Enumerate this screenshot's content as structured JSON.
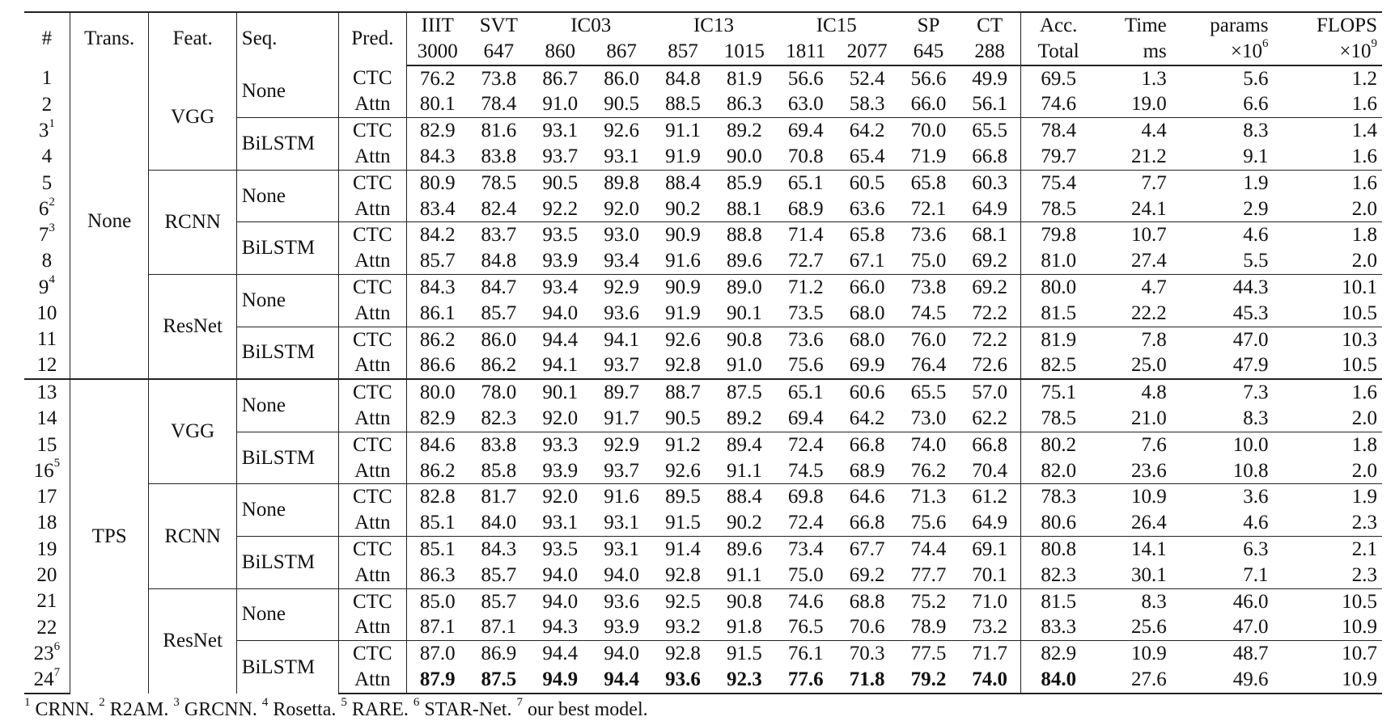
{
  "header": {
    "idx": "#",
    "trans": "Trans.",
    "feat": "Feat.",
    "seq": "Seq.",
    "pred": "Pred.",
    "datasets": [
      {
        "name": "IIIT",
        "subs": [
          "3000"
        ]
      },
      {
        "name": "SVT",
        "subs": [
          "647"
        ]
      },
      {
        "name": "IC03",
        "subs": [
          "860",
          "867"
        ]
      },
      {
        "name": "IC13",
        "subs": [
          "857",
          "1015"
        ]
      },
      {
        "name": "IC15",
        "subs": [
          "1811",
          "2077"
        ]
      },
      {
        "name": "SP",
        "subs": [
          "645"
        ]
      },
      {
        "name": "CT",
        "subs": [
          "288"
        ]
      }
    ],
    "acc": "Acc.",
    "acc_sub": "Total",
    "time": "Time",
    "time_sub": "ms",
    "params": "params",
    "params_sub": "×10",
    "params_exp": "6",
    "flops": "FLOPS",
    "flops_sub": "×10",
    "flops_exp": "9"
  },
  "rows": [
    {
      "id": "1",
      "sup": "",
      "pred": "CTC",
      "v": [
        "76.2",
        "73.8",
        "86.7",
        "86.0",
        "84.8",
        "81.9",
        "56.6",
        "52.4",
        "56.6",
        "49.9"
      ],
      "acc": "69.5",
      "time": "1.3",
      "params": "5.6",
      "flops": "1.2"
    },
    {
      "id": "2",
      "sup": "",
      "pred": "Attn",
      "v": [
        "80.1",
        "78.4",
        "91.0",
        "90.5",
        "88.5",
        "86.3",
        "63.0",
        "58.3",
        "66.0",
        "56.1"
      ],
      "acc": "74.6",
      "time": "19.0",
      "params": "6.6",
      "flops": "1.6"
    },
    {
      "id": "3",
      "sup": "1",
      "pred": "CTC",
      "v": [
        "82.9",
        "81.6",
        "93.1",
        "92.6",
        "91.1",
        "89.2",
        "69.4",
        "64.2",
        "70.0",
        "65.5"
      ],
      "acc": "78.4",
      "time": "4.4",
      "params": "8.3",
      "flops": "1.4"
    },
    {
      "id": "4",
      "sup": "",
      "pred": "Attn",
      "v": [
        "84.3",
        "83.8",
        "93.7",
        "93.1",
        "91.9",
        "90.0",
        "70.8",
        "65.4",
        "71.9",
        "66.8"
      ],
      "acc": "79.7",
      "time": "21.2",
      "params": "9.1",
      "flops": "1.6"
    },
    {
      "id": "5",
      "sup": "",
      "pred": "CTC",
      "v": [
        "80.9",
        "78.5",
        "90.5",
        "89.8",
        "88.4",
        "85.9",
        "65.1",
        "60.5",
        "65.8",
        "60.3"
      ],
      "acc": "75.4",
      "time": "7.7",
      "params": "1.9",
      "flops": "1.6"
    },
    {
      "id": "6",
      "sup": "2",
      "pred": "Attn",
      "v": [
        "83.4",
        "82.4",
        "92.2",
        "92.0",
        "90.2",
        "88.1",
        "68.9",
        "63.6",
        "72.1",
        "64.9"
      ],
      "acc": "78.5",
      "time": "24.1",
      "params": "2.9",
      "flops": "2.0"
    },
    {
      "id": "7",
      "sup": "3",
      "pred": "CTC",
      "v": [
        "84.2",
        "83.7",
        "93.5",
        "93.0",
        "90.9",
        "88.8",
        "71.4",
        "65.8",
        "73.6",
        "68.1"
      ],
      "acc": "79.8",
      "time": "10.7",
      "params": "4.6",
      "flops": "1.8"
    },
    {
      "id": "8",
      "sup": "",
      "pred": "Attn",
      "v": [
        "85.7",
        "84.8",
        "93.9",
        "93.4",
        "91.6",
        "89.6",
        "72.7",
        "67.1",
        "75.0",
        "69.2"
      ],
      "acc": "81.0",
      "time": "27.4",
      "params": "5.5",
      "flops": "2.0"
    },
    {
      "id": "9",
      "sup": "4",
      "pred": "CTC",
      "v": [
        "84.3",
        "84.7",
        "93.4",
        "92.9",
        "90.9",
        "89.0",
        "71.2",
        "66.0",
        "73.8",
        "69.2"
      ],
      "acc": "80.0",
      "time": "4.7",
      "params": "44.3",
      "flops": "10.1"
    },
    {
      "id": "10",
      "sup": "",
      "pred": "Attn",
      "v": [
        "86.1",
        "85.7",
        "94.0",
        "93.6",
        "91.9",
        "90.1",
        "73.5",
        "68.0",
        "74.5",
        "72.2"
      ],
      "acc": "81.5",
      "time": "22.2",
      "params": "45.3",
      "flops": "10.5"
    },
    {
      "id": "11",
      "sup": "",
      "pred": "CTC",
      "v": [
        "86.2",
        "86.0",
        "94.4",
        "94.1",
        "92.6",
        "90.8",
        "73.6",
        "68.0",
        "76.0",
        "72.2"
      ],
      "acc": "81.9",
      "time": "7.8",
      "params": "47.0",
      "flops": "10.3"
    },
    {
      "id": "12",
      "sup": "",
      "pred": "Attn",
      "v": [
        "86.6",
        "86.2",
        "94.1",
        "93.7",
        "92.8",
        "91.0",
        "75.6",
        "69.9",
        "76.4",
        "72.6"
      ],
      "acc": "82.5",
      "time": "25.0",
      "params": "47.9",
      "flops": "10.5"
    },
    {
      "id": "13",
      "sup": "",
      "pred": "CTC",
      "v": [
        "80.0",
        "78.0",
        "90.1",
        "89.7",
        "88.7",
        "87.5",
        "65.1",
        "60.6",
        "65.5",
        "57.0"
      ],
      "acc": "75.1",
      "time": "4.8",
      "params": "7.3",
      "flops": "1.6"
    },
    {
      "id": "14",
      "sup": "",
      "pred": "Attn",
      "v": [
        "82.9",
        "82.3",
        "92.0",
        "91.7",
        "90.5",
        "89.2",
        "69.4",
        "64.2",
        "73.0",
        "62.2"
      ],
      "acc": "78.5",
      "time": "21.0",
      "params": "8.3",
      "flops": "2.0"
    },
    {
      "id": "15",
      "sup": "",
      "pred": "CTC",
      "v": [
        "84.6",
        "83.8",
        "93.3",
        "92.9",
        "91.2",
        "89.4",
        "72.4",
        "66.8",
        "74.0",
        "66.8"
      ],
      "acc": "80.2",
      "time": "7.6",
      "params": "10.0",
      "flops": "1.8"
    },
    {
      "id": "16",
      "sup": "5",
      "pred": "Attn",
      "v": [
        "86.2",
        "85.8",
        "93.9",
        "93.7",
        "92.6",
        "91.1",
        "74.5",
        "68.9",
        "76.2",
        "70.4"
      ],
      "acc": "82.0",
      "time": "23.6",
      "params": "10.8",
      "flops": "2.0"
    },
    {
      "id": "17",
      "sup": "",
      "pred": "CTC",
      "v": [
        "82.8",
        "81.7",
        "92.0",
        "91.6",
        "89.5",
        "88.4",
        "69.8",
        "64.6",
        "71.3",
        "61.2"
      ],
      "acc": "78.3",
      "time": "10.9",
      "params": "3.6",
      "flops": "1.9"
    },
    {
      "id": "18",
      "sup": "",
      "pred": "Attn",
      "v": [
        "85.1",
        "84.0",
        "93.1",
        "93.1",
        "91.5",
        "90.2",
        "72.4",
        "66.8",
        "75.6",
        "64.9"
      ],
      "acc": "80.6",
      "time": "26.4",
      "params": "4.6",
      "flops": "2.3"
    },
    {
      "id": "19",
      "sup": "",
      "pred": "CTC",
      "v": [
        "85.1",
        "84.3",
        "93.5",
        "93.1",
        "91.4",
        "89.6",
        "73.4",
        "67.7",
        "74.4",
        "69.1"
      ],
      "acc": "80.8",
      "time": "14.1",
      "params": "6.3",
      "flops": "2.1"
    },
    {
      "id": "20",
      "sup": "",
      "pred": "Attn",
      "v": [
        "86.3",
        "85.7",
        "94.0",
        "94.0",
        "92.8",
        "91.1",
        "75.0",
        "69.2",
        "77.7",
        "70.1"
      ],
      "acc": "82.3",
      "time": "30.1",
      "params": "7.1",
      "flops": "2.3"
    },
    {
      "id": "21",
      "sup": "",
      "pred": "CTC",
      "v": [
        "85.0",
        "85.7",
        "94.0",
        "93.6",
        "92.5",
        "90.8",
        "74.6",
        "68.8",
        "75.2",
        "71.0"
      ],
      "acc": "81.5",
      "time": "8.3",
      "params": "46.0",
      "flops": "10.5"
    },
    {
      "id": "22",
      "sup": "",
      "pred": "Attn",
      "v": [
        "87.1",
        "87.1",
        "94.3",
        "93.9",
        "93.2",
        "91.8",
        "76.5",
        "70.6",
        "78.9",
        "73.2"
      ],
      "acc": "83.3",
      "time": "25.6",
      "params": "47.0",
      "flops": "10.9"
    },
    {
      "id": "23",
      "sup": "6",
      "pred": "CTC",
      "v": [
        "87.0",
        "86.9",
        "94.4",
        "94.0",
        "92.8",
        "91.5",
        "76.1",
        "70.3",
        "77.5",
        "71.7"
      ],
      "acc": "82.9",
      "time": "10.9",
      "params": "48.7",
      "flops": "10.7"
    },
    {
      "id": "24",
      "sup": "7",
      "pred": "Attn",
      "v": [
        "87.9",
        "87.5",
        "94.9",
        "94.4",
        "93.6",
        "92.3",
        "77.6",
        "71.8",
        "79.2",
        "74.0"
      ],
      "acc": "84.0",
      "time": "27.6",
      "params": "49.6",
      "flops": "10.9",
      "bold": true
    }
  ],
  "trans_groups": [
    {
      "label": "None",
      "start": 0,
      "span": 12
    },
    {
      "label": "TPS",
      "start": 12,
      "span": 12
    }
  ],
  "feat_groups": [
    {
      "label": "VGG",
      "start": 0,
      "span": 4
    },
    {
      "label": "RCNN",
      "start": 4,
      "span": 4
    },
    {
      "label": "ResNet",
      "start": 8,
      "span": 4
    },
    {
      "label": "VGG",
      "start": 12,
      "span": 4
    },
    {
      "label": "RCNN",
      "start": 16,
      "span": 4
    },
    {
      "label": "ResNet",
      "start": 20,
      "span": 4
    }
  ],
  "seq_groups": [
    {
      "label": "None",
      "start": 0,
      "span": 2
    },
    {
      "label": "BiLSTM",
      "start": 2,
      "span": 2
    },
    {
      "label": "None",
      "start": 4,
      "span": 2
    },
    {
      "label": "BiLSTM",
      "start": 6,
      "span": 2
    },
    {
      "label": "None",
      "start": 8,
      "span": 2
    },
    {
      "label": "BiLSTM",
      "start": 10,
      "span": 2
    },
    {
      "label": "None",
      "start": 12,
      "span": 2
    },
    {
      "label": "BiLSTM",
      "start": 14,
      "span": 2
    },
    {
      "label": "None",
      "start": 16,
      "span": 2
    },
    {
      "label": "BiLSTM",
      "start": 18,
      "span": 2
    },
    {
      "label": "None",
      "start": 20,
      "span": 2
    },
    {
      "label": "BiLSTM",
      "start": 22,
      "span": 2
    }
  ],
  "footnotes": [
    {
      "n": "1",
      "text": " CRNN. "
    },
    {
      "n": "2",
      "text": " R2AM. "
    },
    {
      "n": "3",
      "text": " GRCNN. "
    },
    {
      "n": "4",
      "text": " Rosetta. "
    },
    {
      "n": "5",
      "text": " RARE. "
    },
    {
      "n": "6",
      "text": " STAR-Net. "
    },
    {
      "n": "7",
      "text": " our best model."
    }
  ]
}
